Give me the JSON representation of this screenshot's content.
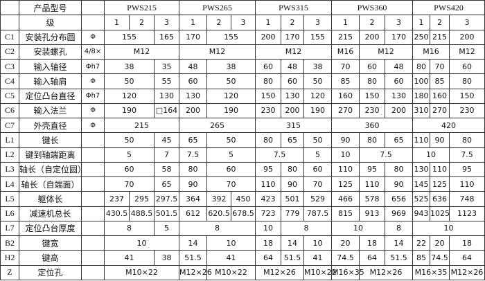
{
  "header": {
    "model_label": "产品型号",
    "models": [
      "PWS215",
      "PWS265",
      "PWS315",
      "PWS360",
      "PWS420"
    ],
    "stage_label": "级",
    "stages": [
      "1",
      "2",
      "3"
    ]
  },
  "rows": [
    {
      "code": "C1",
      "name": "安装孔分布圆",
      "unit": "Φ",
      "cells": [
        [
          "155",
          2
        ],
        [
          "165",
          1
        ],
        [
          "170",
          1
        ],
        [
          "155",
          2
        ],
        [
          "200",
          1
        ],
        [
          "170",
          1
        ],
        [
          "155",
          1
        ],
        [
          "215",
          1
        ],
        [
          "200",
          1
        ],
        [
          "170",
          1
        ],
        [
          "250",
          1
        ],
        [
          "215",
          1
        ],
        [
          "200",
          1
        ]
      ]
    },
    {
      "code": "C2",
      "name": "安装螺孔",
      "unit": "4/8×",
      "cells": [
        [
          "M12",
          3
        ],
        [
          "M12",
          3
        ],
        [
          "M12",
          3
        ],
        [
          "M16",
          1
        ],
        [
          "M12",
          2
        ],
        [
          "M16",
          2
        ],
        [
          "M12",
          1
        ]
      ]
    },
    {
      "code": "C3",
      "name": "输入轴径",
      "unit": "Φh7",
      "cells": [
        [
          "38",
          2
        ],
        [
          "35",
          1
        ],
        [
          "48",
          1
        ],
        [
          "38",
          2
        ],
        [
          "60",
          1
        ],
        [
          "48",
          1
        ],
        [
          "38",
          1
        ],
        [
          "70",
          1
        ],
        [
          "60",
          1
        ],
        [
          "48",
          1
        ],
        [
          "80",
          1
        ],
        [
          "70",
          1
        ],
        [
          "60",
          1
        ]
      ]
    },
    {
      "code": "C4",
      "name": "输入轴肩",
      "unit": "Φ",
      "cells": [
        [
          "50",
          2
        ],
        [
          "55",
          1
        ],
        [
          "60",
          1
        ],
        [
          "50",
          2
        ],
        [
          "80",
          1
        ],
        [
          "60",
          1
        ],
        [
          "50",
          1
        ],
        [
          "85",
          1
        ],
        [
          "80",
          1
        ],
        [
          "60",
          1
        ],
        [
          "100",
          1
        ],
        [
          "85",
          1
        ],
        [
          "80",
          1
        ]
      ]
    },
    {
      "code": "C5",
      "name": "定位凸台直径",
      "unit": "Φh7",
      "cells": [
        [
          "120",
          2
        ],
        [
          "130",
          1
        ],
        [
          "130",
          1
        ],
        [
          "120",
          2
        ],
        [
          "150",
          1
        ],
        [
          "130",
          1
        ],
        [
          "120",
          1
        ],
        [
          "160",
          1
        ],
        [
          "150",
          1
        ],
        [
          "130",
          1
        ],
        [
          "180",
          1
        ],
        [
          "160",
          1
        ],
        [
          "150",
          1
        ]
      ]
    },
    {
      "code": "C6",
      "name": "输入法兰",
      "unit": "Φ",
      "cells": [
        [
          "190",
          2
        ],
        [
          "□164",
          1
        ],
        [
          "200",
          1
        ],
        [
          "190",
          2
        ],
        [
          "230",
          1
        ],
        [
          "200",
          1
        ],
        [
          "190",
          1
        ],
        [
          "270",
          1
        ],
        [
          "230",
          1
        ],
        [
          "200",
          1
        ],
        [
          "310",
          1
        ],
        [
          "270",
          1
        ],
        [
          "230",
          1
        ]
      ]
    },
    {
      "code": "C7",
      "name": "外壳直径",
      "unit": "Φ",
      "cells": [
        [
          "215",
          3
        ],
        [
          "265",
          3
        ],
        [
          "315",
          3
        ],
        [
          "360",
          3
        ],
        [
          "420",
          3
        ]
      ]
    },
    {
      "code": "L1",
      "name": "键长",
      "unit": "",
      "cells": [
        [
          "50",
          2
        ],
        [
          "45",
          1
        ],
        [
          "65",
          1
        ],
        [
          "50",
          2
        ],
        [
          "80",
          1
        ],
        [
          "65",
          1
        ],
        [
          "50",
          1
        ],
        [
          "90",
          1
        ],
        [
          "80",
          1
        ],
        [
          "65",
          1
        ],
        [
          "110",
          1
        ],
        [
          "90",
          1
        ],
        [
          "80",
          1
        ]
      ]
    },
    {
      "code": "L2",
      "name": "键到轴端距离",
      "unit": "",
      "cells": [
        [
          "5",
          2
        ],
        [
          "7",
          1
        ],
        [
          "7.5",
          1
        ],
        [
          "5",
          2
        ],
        [
          "7.5",
          2
        ],
        [
          "5",
          1
        ],
        [
          "10",
          1
        ],
        [
          "7.5",
          2
        ],
        [
          "10",
          2
        ],
        [
          "7.5",
          1
        ]
      ]
    },
    {
      "code": "L3",
      "name": "轴长（自定位圆）",
      "unit": "",
      "cells": [
        [
          "60",
          2
        ],
        [
          "58",
          1
        ],
        [
          "80",
          1
        ],
        [
          "60",
          2
        ],
        [
          "95",
          1
        ],
        [
          "80",
          1
        ],
        [
          "60",
          1
        ],
        [
          "110",
          1
        ],
        [
          "95",
          1
        ],
        [
          "80",
          1
        ],
        [
          "130",
          1
        ],
        [
          "110",
          1
        ],
        [
          "95",
          1
        ]
      ]
    },
    {
      "code": "L4",
      "name": "轴长（自端面）",
      "unit": "",
      "cells": [
        [
          "70",
          2
        ],
        [
          "65",
          1
        ],
        [
          "90",
          1
        ],
        [
          "70",
          2
        ],
        [
          "110",
          1
        ],
        [
          "90",
          1
        ],
        [
          "70",
          1
        ],
        [
          "125",
          1
        ],
        [
          "110",
          1
        ],
        [
          "90",
          1
        ],
        [
          "145",
          1
        ],
        [
          "125",
          1
        ],
        [
          "110",
          1
        ]
      ]
    },
    {
      "code": "L5",
      "name": "躯体长",
      "unit": "",
      "cells": [
        [
          "237",
          1
        ],
        [
          "295",
          1
        ],
        [
          "297.5",
          1
        ],
        [
          "364",
          1
        ],
        [
          "392",
          1
        ],
        [
          "450",
          1
        ],
        [
          "423",
          1
        ],
        [
          "501",
          1
        ],
        [
          "529",
          1
        ],
        [
          "466",
          1
        ],
        [
          "578",
          1
        ],
        [
          "656",
          1
        ],
        [
          "525",
          1
        ],
        [
          "636",
          1
        ],
        [
          "748",
          1
        ]
      ]
    },
    {
      "code": "L6",
      "name": "减速机总长",
      "unit": "",
      "cells": [
        [
          "430.5",
          1
        ],
        [
          "488.5",
          1
        ],
        [
          "501.5",
          1
        ],
        [
          "612",
          1
        ],
        [
          "620.5",
          1
        ],
        [
          "678.5",
          1
        ],
        [
          "723",
          1
        ],
        [
          "779",
          1
        ],
        [
          "787.5",
          1
        ],
        [
          "815",
          1
        ],
        [
          "913",
          1
        ],
        [
          "969",
          1
        ],
        [
          "943",
          1
        ],
        [
          "1025",
          1
        ],
        [
          "1123",
          1
        ]
      ]
    },
    {
      "code": "L7",
      "name": "定位凸台厚度",
      "unit": "",
      "cells": [
        [
          "8",
          2
        ],
        [
          "5",
          1
        ],
        [
          "8",
          3
        ],
        [
          "10",
          1
        ],
        [
          "8",
          2
        ],
        [
          "10",
          2
        ],
        [
          "8",
          1
        ],
        [
          "10",
          3
        ]
      ]
    },
    {
      "code": "B2",
      "name": "键宽",
      "unit": "",
      "cells": [
        [
          "10",
          3
        ],
        [
          "14",
          1
        ],
        [
          "10",
          2
        ],
        [
          "18",
          1
        ],
        [
          "14",
          1
        ],
        [
          "10",
          1
        ],
        [
          "20",
          1
        ],
        [
          "18",
          1
        ],
        [
          "14",
          1
        ],
        [
          "22",
          1
        ],
        [
          "20",
          1
        ],
        [
          "18",
          1
        ]
      ]
    },
    {
      "code": "H2",
      "name": "键高",
      "unit": "",
      "cells": [
        [
          "41",
          2
        ],
        [
          "38",
          1
        ],
        [
          "51.5",
          1
        ],
        [
          "41",
          2
        ],
        [
          "64",
          1
        ],
        [
          "51.5",
          1
        ],
        [
          "41",
          1
        ],
        [
          "74.5",
          1
        ],
        [
          "64",
          1
        ],
        [
          "51.5",
          1
        ],
        [
          "85",
          1
        ],
        [
          "74.5",
          1
        ],
        [
          "64",
          1
        ]
      ]
    },
    {
      "code": "Z",
      "name": "定位孔",
      "unit": "",
      "cells": [
        [
          "M10×22",
          3
        ],
        [
          "M12×26",
          1
        ],
        [
          "M10×22",
          2
        ],
        [
          "M12×26",
          2
        ],
        [
          "M10×22",
          1
        ],
        [
          "M16×35",
          1
        ],
        [
          "M12×26",
          2
        ],
        [
          "M16×35",
          2
        ],
        [
          "M12×26",
          1
        ]
      ]
    }
  ]
}
